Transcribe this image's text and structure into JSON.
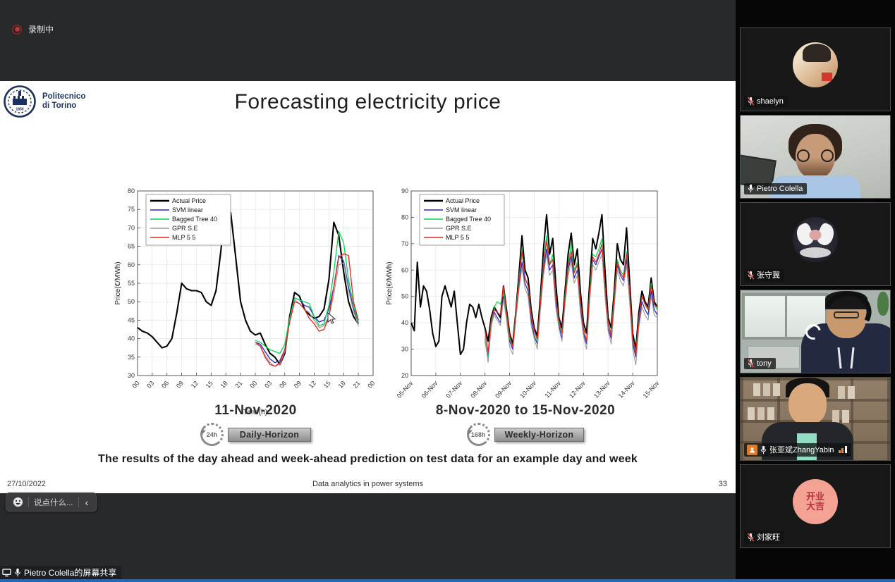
{
  "meeting": {
    "recording_label": "录制中",
    "share_banner": "Pietro Colella的屏幕共享",
    "chat": {
      "placeholder": "说点什么...",
      "collapse_glyph": "‹"
    },
    "participants": [
      {
        "name": "shaelyn",
        "muted": true,
        "video": false
      },
      {
        "name": "Pietro Colella",
        "muted": false,
        "video": true
      },
      {
        "name": "张守冀",
        "muted": true,
        "video": false
      },
      {
        "name": "tony",
        "muted": true,
        "video": true
      },
      {
        "name": "张亚斌ZhangYabin",
        "muted": false,
        "video": true,
        "signal_indicator": true
      },
      {
        "name": "刘家旺",
        "muted": true,
        "video": false,
        "avatar_text": "开业大吉"
      }
    ]
  },
  "slide": {
    "logo_line1": "Politecnico",
    "logo_line2": "di Torino",
    "logo_year": "1859",
    "title": "Forecasting electricity price",
    "badges": [
      {
        "clock": "24h",
        "label": "Daily-Horizon"
      },
      {
        "clock": "168h",
        "label": "Weekly-Horizon"
      }
    ],
    "summary": "The results of the day ahead and week-ahead prediction on test data for an example day and week",
    "footer": {
      "date": "27/10/2022",
      "center": "Data analytics in power systems",
      "page": "33"
    }
  },
  "chart_data": [
    {
      "type": "line",
      "title": "11-Nov-2020",
      "xlabel": "Time(h)",
      "ylabel": "Price(€/MWh)",
      "xlim": [
        0,
        48
      ],
      "ylim": [
        30,
        80
      ],
      "yticks": [
        30,
        35,
        40,
        45,
        50,
        55,
        60,
        65,
        70,
        75,
        80
      ],
      "xticks": [
        0,
        3,
        6,
        9,
        12,
        15,
        18,
        21,
        24,
        27,
        30,
        33,
        36,
        39,
        42,
        45,
        48
      ],
      "xtick_labels": [
        "00",
        "03",
        "06",
        "09",
        "12",
        "15",
        "18",
        "21",
        "00",
        "03",
        "06",
        "09",
        "12",
        "15",
        "18",
        "21",
        "00"
      ],
      "x_start": 0,
      "x_step": 1,
      "grid": true,
      "legend_position": "top-left",
      "series": [
        {
          "name": "Actual Price",
          "color": "#000000",
          "width": 2.1,
          "x_offset": 0,
          "values": [
            43,
            42,
            41.5,
            40.5,
            39,
            37.5,
            38,
            40,
            47,
            55,
            53.5,
            53,
            53,
            52.5,
            50,
            49,
            53,
            64,
            77.5,
            74,
            62,
            50,
            45,
            42,
            41,
            41.5,
            38.5,
            36,
            35,
            33,
            36,
            46,
            52.5,
            51.5,
            48,
            46.5,
            45.5,
            46,
            48,
            56,
            71.5,
            68,
            58,
            50,
            46,
            44
          ]
        },
        {
          "name": "SVM linear",
          "color": "#2626cc",
          "width": 1.3,
          "x_offset": 24,
          "values": [
            39,
            38.5,
            36.5,
            34.5,
            33.5,
            34,
            37,
            45,
            51,
            50.5,
            49,
            48.5,
            46,
            44.5,
            45,
            48,
            54,
            62.5,
            61,
            54,
            48,
            44.5
          ]
        },
        {
          "name": "Bagged Tree 40",
          "color": "#00d94d",
          "width": 1.3,
          "x_offset": 24,
          "values": [
            39.5,
            39,
            38,
            37,
            36.5,
            36,
            38.5,
            45.5,
            51,
            50.5,
            50,
            49.5,
            46,
            43.5,
            44,
            49,
            58,
            69,
            66,
            56,
            49,
            44.5
          ]
        },
        {
          "name": "GPR S.E",
          "color": "#9a9a9a",
          "width": 1.2,
          "x_offset": 24,
          "values": [
            38.5,
            38,
            35.5,
            33.5,
            32.5,
            33,
            36.5,
            44.5,
            50.5,
            49.5,
            48,
            47,
            45,
            43,
            43.5,
            46,
            52,
            60,
            60.5,
            53,
            47.5,
            43.5
          ]
        },
        {
          "name": "MLP 5 5",
          "color": "#e8231a",
          "width": 1.3,
          "x_offset": 24,
          "values": [
            39,
            38,
            35,
            33,
            32.5,
            33.5,
            37,
            44.5,
            50,
            49.5,
            48,
            45.5,
            44,
            42,
            42.5,
            46,
            54,
            62,
            63,
            62.5,
            50,
            45
          ]
        }
      ]
    },
    {
      "type": "line",
      "title": "8-Nov-2020 to 15-Nov-2020",
      "xlabel": "",
      "ylabel": "Price(€/MWh)",
      "xlim": [
        0,
        240
      ],
      "ylim": [
        20,
        90
      ],
      "yticks": [
        20,
        30,
        40,
        50,
        60,
        70,
        80,
        90
      ],
      "xticks": [
        0,
        24,
        48,
        72,
        96,
        120,
        144,
        168,
        192,
        216,
        240
      ],
      "xtick_labels": [
        "05-Nov",
        "06-Nov",
        "07-Nov",
        "08-Nov",
        "09-Nov",
        "10-Nov",
        "11-Nov",
        "12-Nov",
        "13-Nov",
        "14-Nov",
        "15-Nov"
      ],
      "x_start": 0,
      "x_step": 3,
      "grid": true,
      "legend_position": "top-left",
      "series": [
        {
          "name": "Actual Price",
          "color": "#000000",
          "width": 2.0,
          "x_offset": 0,
          "values": [
            40,
            37,
            63,
            46,
            54,
            52,
            45,
            36,
            31,
            33,
            50,
            54,
            50,
            46,
            52,
            40,
            28,
            30,
            40,
            47,
            46,
            42,
            47,
            42,
            38,
            33,
            42,
            46,
            44,
            42,
            54,
            45,
            36,
            32,
            44,
            58,
            73,
            60,
            57,
            45,
            38,
            35,
            50,
            68,
            81,
            66,
            72,
            55,
            42,
            38,
            52,
            66,
            74,
            62,
            68,
            52,
            40,
            36,
            55,
            72,
            68,
            74,
            81,
            60,
            42,
            38,
            52,
            70,
            64,
            62,
            76,
            56,
            36,
            30,
            44,
            52,
            48,
            46,
            57,
            48,
            46
          ]
        },
        {
          "name": "SVM linear",
          "color": "#2626cc",
          "width": 1.2,
          "x_offset": 24,
          "values": [
            34,
            27,
            40,
            44,
            42,
            40,
            50,
            42,
            33,
            30,
            42,
            54,
            63,
            55,
            52,
            41,
            35,
            32,
            46,
            60,
            68,
            60,
            62,
            48,
            39,
            34,
            48,
            60,
            65,
            57,
            60,
            46,
            36,
            32,
            50,
            64,
            62,
            65,
            68,
            52,
            38,
            34,
            48,
            62,
            58,
            56,
            64,
            50,
            32,
            27,
            40,
            48,
            45,
            43,
            52,
            45,
            43
          ]
        },
        {
          "name": "Bagged Tree 40",
          "color": "#00d94d",
          "width": 1.2,
          "x_offset": 24,
          "values": [
            33,
            26,
            38,
            46,
            48,
            47,
            52,
            43,
            34,
            31,
            44,
            56,
            68,
            57,
            54,
            43,
            37,
            33,
            48,
            63,
            73,
            62,
            66,
            50,
            40,
            36,
            50,
            62,
            70,
            60,
            63,
            48,
            38,
            33,
            52,
            66,
            65,
            68,
            72,
            54,
            40,
            36,
            50,
            64,
            60,
            58,
            67,
            52,
            34,
            29,
            42,
            50,
            47,
            45,
            55,
            47,
            45
          ]
        },
        {
          "name": "GPR S.E",
          "color": "#9a9a9a",
          "width": 1.1,
          "x_offset": 24,
          "values": [
            35,
            25,
            39,
            43,
            41,
            39,
            49,
            41,
            31,
            28,
            41,
            52,
            61,
            53,
            50,
            39,
            34,
            30,
            45,
            58,
            66,
            58,
            60,
            46,
            38,
            33,
            47,
            58,
            63,
            55,
            58,
            44,
            35,
            30,
            48,
            62,
            60,
            63,
            66,
            50,
            37,
            32,
            46,
            60,
            56,
            54,
            62,
            48,
            30,
            24,
            38,
            46,
            43,
            41,
            50,
            43,
            42
          ]
        },
        {
          "name": "MLP 5 5",
          "color": "#e8231a",
          "width": 1.2,
          "x_offset": 24,
          "values": [
            37,
            29,
            41,
            45,
            44,
            43,
            54,
            44,
            35,
            31,
            43,
            55,
            67,
            57,
            54,
            43,
            37,
            34,
            47,
            62,
            71,
            62,
            64,
            50,
            41,
            36,
            49,
            61,
            67,
            59,
            62,
            48,
            38,
            33,
            51,
            65,
            63,
            66,
            70,
            54,
            40,
            35,
            49,
            63,
            59,
            57,
            66,
            52,
            34,
            28,
            42,
            50,
            47,
            45,
            54,
            47,
            46
          ]
        }
      ]
    }
  ]
}
